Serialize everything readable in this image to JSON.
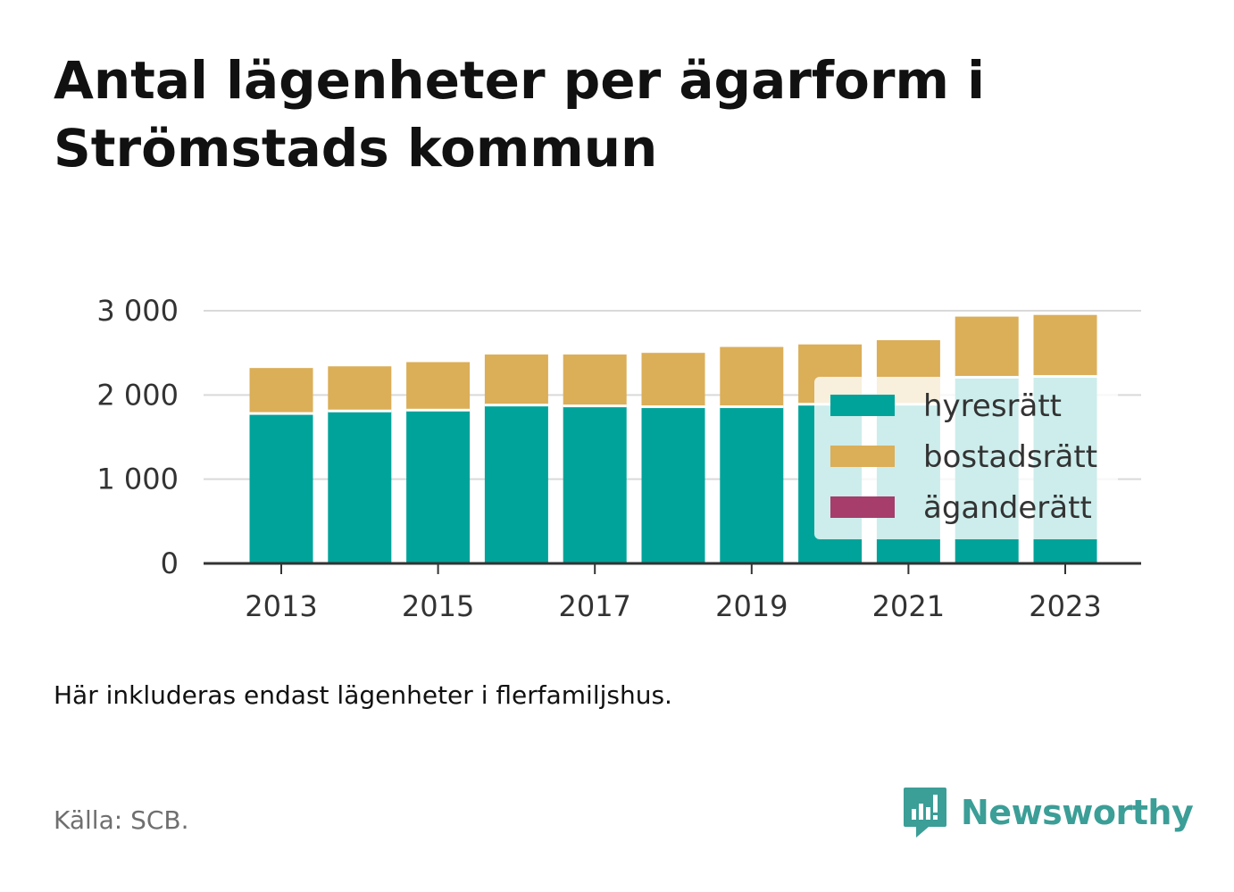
{
  "title": "Antal lägenheter per ägarform i Strömstads kommun",
  "note": "Här inkluderas endast lägenheter i flerfamiljshus.",
  "source": "Källa: SCB.",
  "brand": {
    "name": "Newsworthy",
    "icon": "newsworthy-logo-icon"
  },
  "colors": {
    "hyresratt": "#00a39a",
    "bostadsratt": "#dbae58",
    "aganderatt": "#a63d6a",
    "brand": "#3b9e97",
    "grid": "#d9d9d9",
    "axis": "#333333"
  },
  "chart_data": {
    "type": "bar",
    "stacked": true,
    "title": "Antal lägenheter per ägarform i Strömstads kommun",
    "xlabel": "",
    "ylabel": "",
    "categories": [
      "2013",
      "2014",
      "2015",
      "2016",
      "2017",
      "2018",
      "2019",
      "2020",
      "2021",
      "2022",
      "2023"
    ],
    "x_tick_labels": [
      "2013",
      "2015",
      "2017",
      "2019",
      "2021",
      "2023"
    ],
    "y_ticks": [
      0,
      1000,
      2000,
      3000
    ],
    "y_tick_labels": [
      "0",
      "1 000",
      "2 000",
      "3 000"
    ],
    "ylim": [
      0,
      3000
    ],
    "grid": true,
    "legend_position": "bottom-right",
    "series": [
      {
        "name": "hyresrätt",
        "values": [
          1780,
          1810,
          1820,
          1880,
          1870,
          1860,
          1860,
          1890,
          1890,
          2210,
          2220
        ]
      },
      {
        "name": "bostadsrätt",
        "values": [
          540,
          530,
          570,
          600,
          610,
          640,
          710,
          710,
          760,
          720,
          730
        ]
      },
      {
        "name": "äganderätt",
        "values": [
          0,
          0,
          0,
          0,
          0,
          0,
          0,
          0,
          0,
          0,
          0
        ]
      }
    ]
  }
}
